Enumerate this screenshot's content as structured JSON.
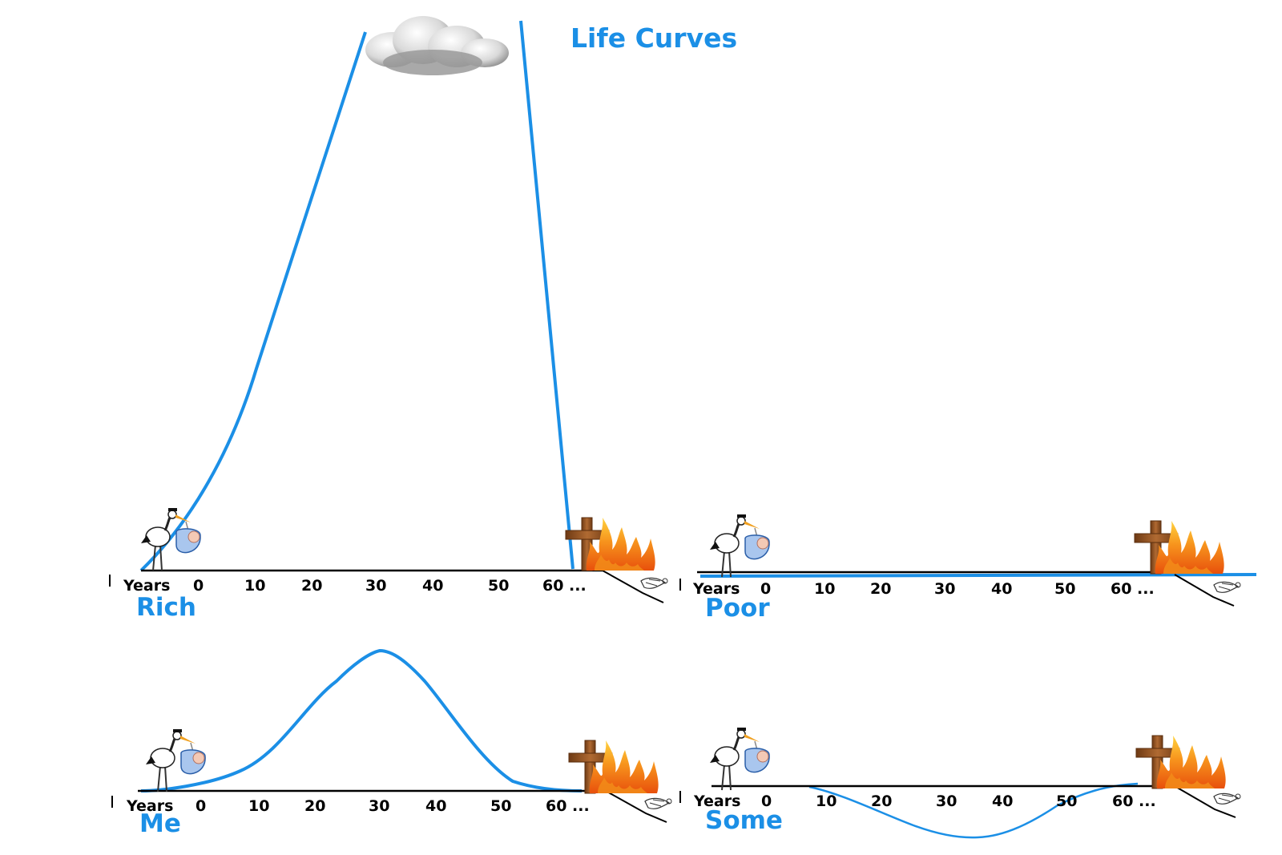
{
  "title": "Life Curves",
  "colors": {
    "curve": "#1b8fe6",
    "label": "#1b8fe6",
    "axis": "#000000",
    "cross": "#9a5a2a",
    "fire": "#f28a18"
  },
  "icons": {
    "start": "stork-with-baby-icon",
    "end": "cross-icon",
    "hell": "fire-icon",
    "heaven": "cloud-icon",
    "drop": "falling-figure-icon"
  },
  "panels": [
    {
      "label": "Rich",
      "axis_prefix": "Years",
      "ticks": [
        "0",
        "10",
        "20",
        "30",
        "40",
        "50",
        "60 ..."
      ],
      "curve_shape": "rises steeply from birth to the clouds, then falls to the ground near 60"
    },
    {
      "label": "Poor",
      "axis_prefix": "Years",
      "ticks": [
        "0",
        "10",
        "20",
        "30",
        "40",
        "50",
        "60 ..."
      ],
      "curve_shape": "flat along the ground"
    },
    {
      "label": "Me",
      "axis_prefix": "Years",
      "ticks": [
        "0",
        "10",
        "20",
        "30",
        "40",
        "50",
        "60 ..."
      ],
      "curve_shape": "bell curve peaking near 30"
    },
    {
      "label": "Some",
      "axis_prefix": "Years",
      "ticks": [
        "0",
        "10",
        "20",
        "30",
        "40",
        "50",
        "60 ..."
      ],
      "curve_shape": "dips below the ground, lowest near 30"
    }
  ]
}
